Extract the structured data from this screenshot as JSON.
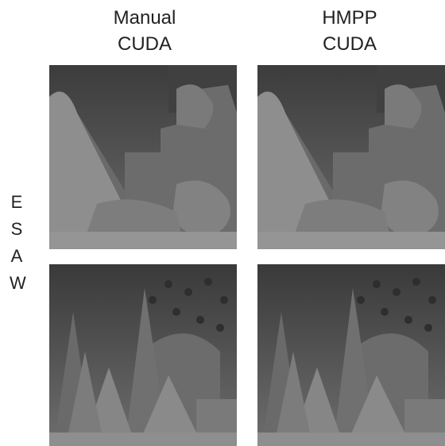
{
  "columns": [
    {
      "lines": [
        "Manual",
        "CUDA"
      ]
    },
    {
      "lines": [
        "HMPP",
        "CUDA"
      ]
    }
  ],
  "rows": [
    {
      "label": "ESAW"
    }
  ]
}
